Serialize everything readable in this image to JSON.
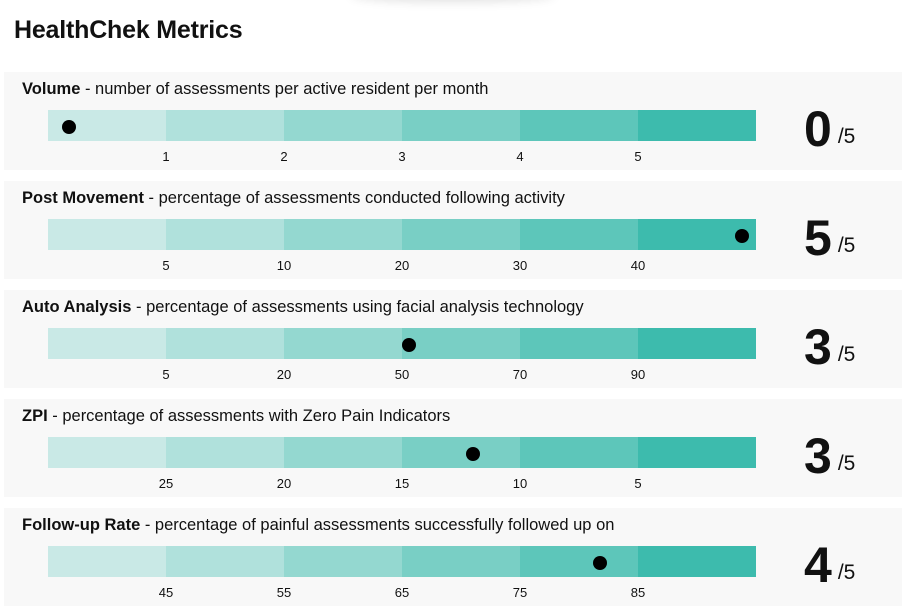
{
  "page": {
    "title": "HealthChek Metrics"
  },
  "scale_colors": [
    "#c9e9e6",
    "#b0e1dc",
    "#94d8d0",
    "#79cfc5",
    "#5dc6ba",
    "#3dbbad"
  ],
  "metrics": [
    {
      "name": "Volume",
      "description": " - number of assessments per active resident per month",
      "ticks": [
        "1",
        "2",
        "3",
        "4",
        "5"
      ],
      "level": 0.03,
      "score": "0",
      "max": "/5"
    },
    {
      "name": "Post Movement",
      "description": " - percentage of assessments conducted following activity",
      "ticks": [
        "5",
        "10",
        "20",
        "30",
        "40"
      ],
      "level": 0.98,
      "score": "5",
      "max": "/5"
    },
    {
      "name": "Auto Analysis",
      "description": " - percentage of assessments using facial analysis technology",
      "ticks": [
        "5",
        "20",
        "50",
        "70",
        "90"
      ],
      "level": 0.51,
      "score": "3",
      "max": "/5"
    },
    {
      "name": "ZPI",
      "description": " - percentage of assessments with Zero Pain Indicators",
      "ticks": [
        "25",
        "20",
        "15",
        "10",
        "5"
      ],
      "level": 0.6,
      "score": "3",
      "max": "/5"
    },
    {
      "name": "Follow-up Rate",
      "description": " - percentage of painful assessments successfully followed up on",
      "ticks": [
        "45",
        "55",
        "65",
        "75",
        "85"
      ],
      "level": 0.78,
      "score": "4",
      "max": "/5"
    }
  ]
}
